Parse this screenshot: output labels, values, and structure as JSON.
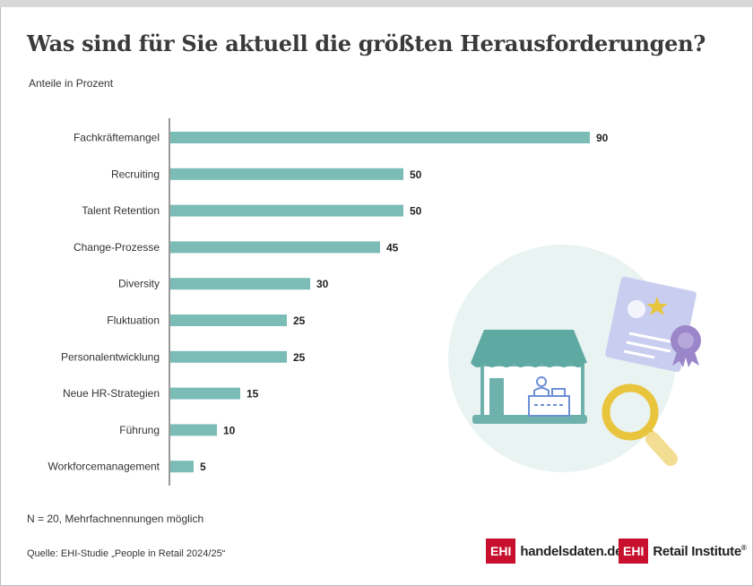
{
  "title": "Was sind für Sie aktuell die größten Herausforderungen?",
  "subtitle": "Anteile in Prozent",
  "note": "N = 20, Mehrfachnennungen möglich",
  "source": "Quelle: EHI-Studie „People in Retail 2024/25“",
  "logos": {
    "ehi_mark": "EHI",
    "handelsdaten": "handelsdaten.de",
    "retail_institute": "Retail Institute",
    "registered": "®"
  },
  "colors": {
    "bar": "#7bbcb7",
    "logo_red": "#c8102e",
    "title": "#3a3a3a"
  },
  "chart_data": {
    "type": "bar",
    "orientation": "horizontal",
    "categories": [
      "Fachkräftemangel",
      "Recruiting",
      "Talent Retention",
      "Change-Prozesse",
      "Diversity",
      "Fluktuation",
      "Personalentwicklung",
      "Neue HR-Strategien",
      "Führung",
      "Workforcemanagement"
    ],
    "values": [
      90,
      50,
      50,
      45,
      30,
      25,
      25,
      15,
      10,
      5
    ],
    "xlim": [
      0,
      90
    ],
    "grid": false,
    "data_labels": true
  }
}
